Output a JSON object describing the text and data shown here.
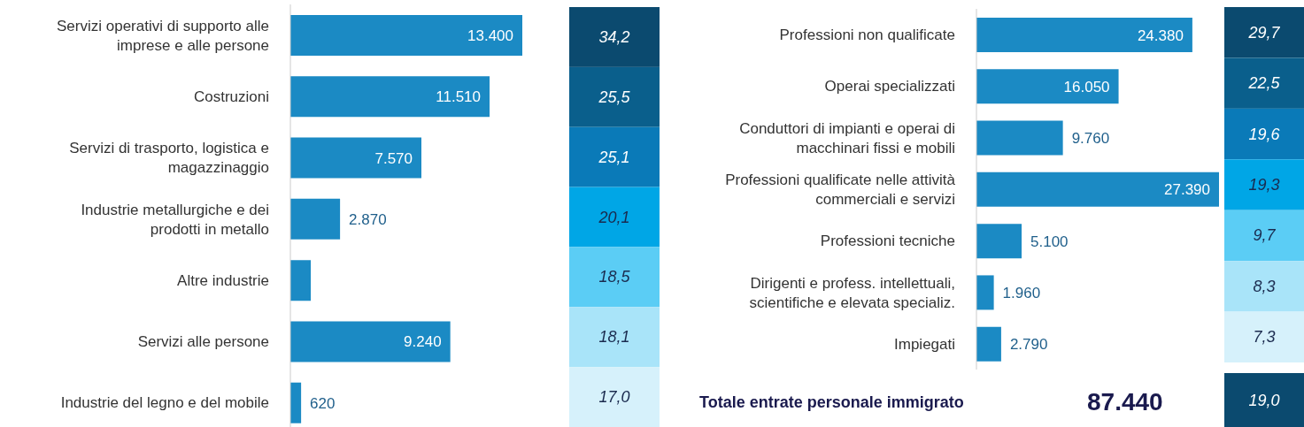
{
  "chart_data": [
    {
      "type": "bar",
      "orientation": "horizontal",
      "categories": [
        "Servizi operativi di supporto alle imprese e alle persone",
        "Costruzioni",
        "Servizi di trasporto, logistica e magazzinaggio",
        "Industrie metallurgiche e dei prodotti in metallo",
        "Altre industrie",
        "Servizi alle persone",
        "Industrie del legno e del mobile"
      ],
      "values": [
        13400,
        11510,
        7570,
        2870,
        1180,
        9240,
        620
      ],
      "color": "#1b8ac4",
      "value_labels": [
        "13.400",
        "11.510",
        "7.570",
        "2.870",
        null,
        "9.240",
        "620"
      ]
    },
    {
      "type": "other",
      "values": [
        34.2,
        25.5,
        25.1,
        20.1,
        18.5,
        18.1,
        17.0
      ],
      "value_labels": [
        "34,2",
        "25,5",
        "25,1",
        "20,1",
        "18,5",
        "18,1",
        "17,0"
      ]
    },
    {
      "type": "bar",
      "orientation": "horizontal",
      "categories": [
        "Professioni non qualificate",
        "Operai specializzati",
        "Conduttori di impianti e operai di macchinari fissi e mobili",
        "Professioni qualificate nelle attività commerciali e servizi",
        "Professioni tecniche",
        "Dirigenti e profess. intellettuali, scientifiche e elevata specializ.",
        "Impiegati"
      ],
      "values": [
        24380,
        16050,
        9760,
        27390,
        5100,
        1960,
        2790
      ],
      "color": "#1b8ac4",
      "value_labels": [
        "24.380",
        "16.050",
        "9.760",
        "27.390",
        "5.100",
        "1.960",
        "2.790"
      ],
      "annotations": [
        "Totale entrate personale immigrato",
        "87.440"
      ]
    },
    {
      "type": "other",
      "values": [
        29.7,
        22.5,
        19.6,
        19.3,
        9.7,
        8.3,
        7.3
      ],
      "value_labels": [
        "29,7",
        "22,5",
        "19,6",
        "19,3",
        "9,7",
        "8,3",
        "7,3"
      ]
    },
    {
      "type": "other",
      "values": [
        19.0
      ],
      "value_labels": [
        "19,0"
      ]
    }
  ]
}
